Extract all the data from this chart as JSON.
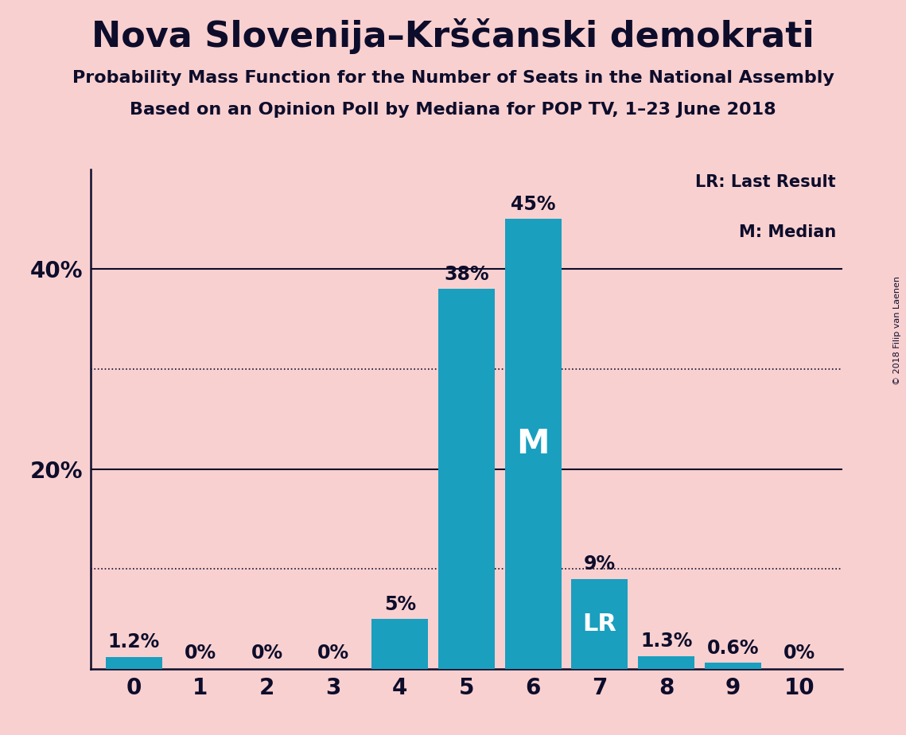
{
  "title": "Nova Slovenija–Krščanski demokrati",
  "subtitle1": "Probability Mass Function for the Number of Seats in the National Assembly",
  "subtitle2": "Based on an Opinion Poll by Mediana for POP TV, 1–23 June 2018",
  "copyright": "© 2018 Filip van Laenen",
  "categories": [
    0,
    1,
    2,
    3,
    4,
    5,
    6,
    7,
    8,
    9,
    10
  ],
  "values": [
    1.2,
    0.0,
    0.0,
    0.0,
    5.0,
    38.0,
    45.0,
    9.0,
    1.3,
    0.6,
    0.0
  ],
  "labels": [
    "1.2%",
    "0%",
    "0%",
    "0%",
    "5%",
    "38%",
    "45%",
    "9%",
    "1.3%",
    "0.6%",
    "0%"
  ],
  "bar_color": "#1a9fbf",
  "background_color": "#f9d0d0",
  "text_color": "#0d0d2b",
  "median_bar": 6,
  "lr_bar": 7,
  "legend_lr": "LR: Last Result",
  "legend_m": "M: Median",
  "ylim": [
    0,
    50
  ],
  "solid_gridlines": [
    20,
    40
  ],
  "dotted_gridlines": [
    10,
    30
  ],
  "title_fontsize": 32,
  "subtitle_fontsize": 16,
  "tick_fontsize": 20,
  "label_fontsize": 17
}
